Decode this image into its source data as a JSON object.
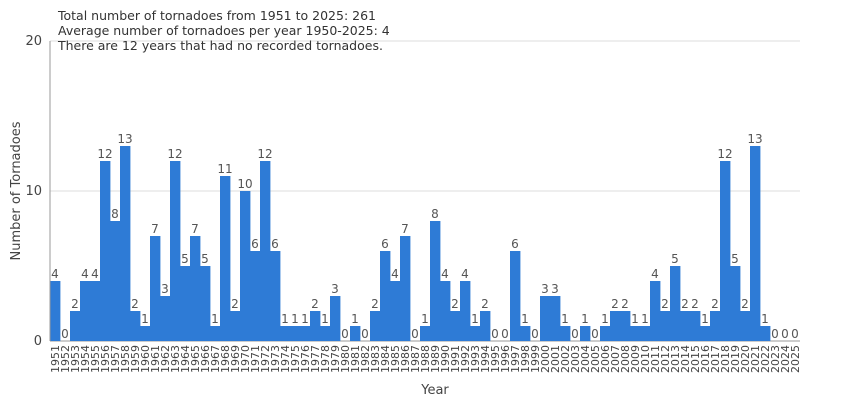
{
  "chart_data": {
    "type": "bar",
    "xlabel": "Year",
    "ylabel": "Number of Tornadoes",
    "ylim": [
      0,
      20
    ],
    "yticks": [
      0,
      10,
      20
    ],
    "grid": true,
    "bar_color": "#2e7bd6",
    "annotations": [
      "Total number of tornadoes from 1951 to 2025: 261",
      "Average number of tornadoes per year 1950-2025: 4",
      "There are 12 years that had no recorded tornadoes."
    ],
    "categories": [
      "1951",
      "1952",
      "1953",
      "1954",
      "1955",
      "1956",
      "1957",
      "1958",
      "1959",
      "1960",
      "1961",
      "1962",
      "1963",
      "1964",
      "1965",
      "1966",
      "1967",
      "1968",
      "1969",
      "1970",
      "1971",
      "1972",
      "1973",
      "1974",
      "1975",
      "1976",
      "1977",
      "1978",
      "1979",
      "1980",
      "1981",
      "1982",
      "1983",
      "1984",
      "1985",
      "1986",
      "1987",
      "1988",
      "1989",
      "1990",
      "1991",
      "1992",
      "1993",
      "1994",
      "1995",
      "1996",
      "1997",
      "1998",
      "1999",
      "2000",
      "2001",
      "2002",
      "2003",
      "2004",
      "2005",
      "2006",
      "2007",
      "2008",
      "2009",
      "2010",
      "2011",
      "2012",
      "2013",
      "2014",
      "2015",
      "2016",
      "2017",
      "2018",
      "2019",
      "2020",
      "2021",
      "2022",
      "2023",
      "2024",
      "2025"
    ],
    "values": [
      4,
      0,
      2,
      4,
      4,
      12,
      8,
      13,
      2,
      1,
      7,
      3,
      12,
      5,
      7,
      5,
      1,
      11,
      2,
      10,
      6,
      12,
      6,
      1,
      1,
      1,
      2,
      1,
      3,
      0,
      1,
      0,
      2,
      6,
      4,
      7,
      0,
      1,
      8,
      4,
      2,
      4,
      1,
      2,
      0,
      0,
      6,
      1,
      0,
      3,
      3,
      1,
      0,
      1,
      0,
      1,
      2,
      2,
      1,
      1,
      4,
      2,
      5,
      2,
      2,
      1,
      2,
      12,
      5,
      2,
      13,
      1,
      0,
      0,
      0
    ]
  }
}
